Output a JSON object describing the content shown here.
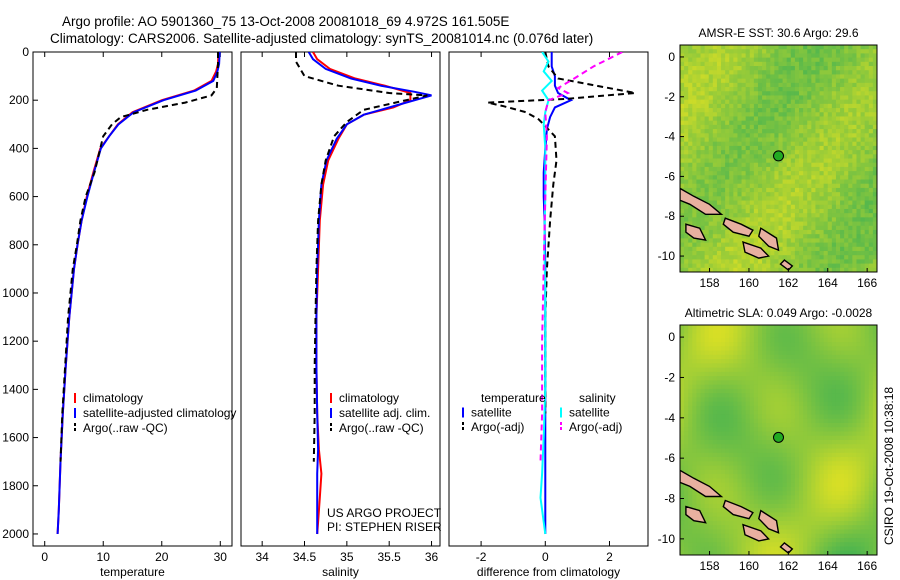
{
  "figure": {
    "title_line1": "Argo profile: AO 5901360_75 13-Oct-2008 20081018_69 4.972S 161.505E",
    "title_line2": "Climatology: CARS2006. Satellite-adjusted climatology: synTS_20081014.nc (0.076d later)",
    "footer_credit": "CSIRO 19-Oct-2008 10:38:18"
  },
  "colors": {
    "climatology": "#ff0000",
    "satellite": "#0000ff",
    "argo": "#000000",
    "diff_temp_argo": "#000000",
    "diff_sal_satellite": "#00ffff",
    "diff_sal_argo": "#ff00ff",
    "marker": "#22aa22"
  },
  "chart_data": [
    {
      "id": "temperature-panel",
      "type": "line",
      "xlabel": "temperature",
      "ylabel": "",
      "xlim": [
        -2,
        32
      ],
      "ylim": [
        2050,
        0
      ],
      "xticks": [
        0,
        10,
        20,
        30
      ],
      "yticks": [
        0,
        200,
        400,
        600,
        800,
        1000,
        1200,
        1400,
        1600,
        1800,
        2000
      ],
      "legend": {
        "position": "lower-left",
        "entries": [
          "climatology",
          "satellite-adjusted climatology",
          "Argo(..raw -QC)"
        ]
      },
      "series": [
        {
          "name": "climatology",
          "color_key": "climatology",
          "dash": "",
          "x": [
            29.7,
            29.6,
            29.3,
            28.5,
            25.5,
            20.0,
            15.0,
            12.5,
            11.0,
            9.5,
            8.3,
            7.2,
            6.3,
            5.6,
            5.0,
            4.2,
            3.6,
            3.1,
            2.7,
            2.4,
            2.2
          ],
          "y": [
            0,
            50,
            80,
            120,
            160,
            200,
            250,
            300,
            350,
            400,
            500,
            600,
            700,
            800,
            900,
            1100,
            1300,
            1500,
            1700,
            1900,
            2000
          ]
        },
        {
          "name": "satellite-adjusted climatology",
          "color_key": "satellite",
          "dash": "",
          "x": [
            29.9,
            29.8,
            29.5,
            28.8,
            25.8,
            20.3,
            15.2,
            12.6,
            11.0,
            9.6,
            8.4,
            7.3,
            6.3,
            5.6,
            5.0,
            4.2,
            3.6,
            3.1,
            2.7,
            2.4,
            2.2
          ],
          "y": [
            0,
            50,
            80,
            120,
            160,
            200,
            250,
            300,
            350,
            400,
            500,
            600,
            700,
            800,
            900,
            1100,
            1300,
            1500,
            1700,
            1900,
            2000
          ]
        },
        {
          "name": "Argo(..raw -QC)",
          "color_key": "argo",
          "dash": "6,4",
          "x": [
            29.6,
            29.6,
            29.5,
            29.4,
            28.5,
            24.0,
            17.5,
            13.0,
            11.5,
            10.0,
            8.5,
            7.0,
            6.1,
            5.5,
            4.8,
            4.0,
            3.5,
            3.0,
            2.7
          ],
          "y": [
            0,
            50,
            100,
            150,
            180,
            210,
            240,
            270,
            300,
            350,
            500,
            600,
            700,
            800,
            900,
            1100,
            1300,
            1500,
            1700
          ]
        }
      ]
    },
    {
      "id": "salinity-panel",
      "type": "line",
      "xlabel": "salinity",
      "ylabel": "",
      "xlim": [
        33.75,
        36.1
      ],
      "ylim": [
        2050,
        0
      ],
      "xticks": [
        34,
        34.5,
        35,
        35.5,
        36
      ],
      "yticks": [],
      "legend": {
        "position": "lower-left",
        "entries": [
          "climatology",
          "satellite adj. clim.",
          "Argo(..raw -QC)"
        ]
      },
      "annotations": [
        "US ARGO PROJECT",
        "PI: STEPHEN RISER"
      ],
      "series": [
        {
          "name": "climatology",
          "color_key": "climatology",
          "dash": "",
          "x": [
            34.6,
            34.65,
            34.8,
            35.1,
            35.45,
            35.75,
            35.75,
            35.55,
            35.2,
            35.0,
            34.9,
            34.78,
            34.72,
            34.68,
            34.66,
            34.64,
            34.64,
            34.65,
            34.67,
            34.7,
            34.68,
            34.66,
            34.65
          ],
          "y": [
            0,
            30,
            70,
            110,
            140,
            170,
            200,
            230,
            260,
            300,
            360,
            450,
            550,
            700,
            900,
            1100,
            1300,
            1500,
            1650,
            1750,
            1850,
            1950,
            2000
          ]
        },
        {
          "name": "satellite adj. clim.",
          "color_key": "satellite",
          "dash": "",
          "x": [
            34.55,
            34.6,
            34.75,
            35.05,
            35.4,
            35.8,
            36.0,
            35.6,
            35.2,
            35.0,
            34.88,
            34.76,
            34.7,
            34.67,
            34.65,
            34.64,
            34.64,
            34.65,
            34.66,
            34.65,
            34.65,
            34.65,
            34.65
          ],
          "y": [
            0,
            30,
            70,
            110,
            140,
            165,
            180,
            220,
            260,
            300,
            360,
            450,
            550,
            700,
            900,
            1100,
            1300,
            1500,
            1650,
            1750,
            1850,
            1950,
            2000
          ]
        },
        {
          "name": "Argo(..raw -QC)",
          "color_key": "argo",
          "dash": "6,4",
          "x": [
            34.4,
            34.4,
            34.5,
            34.9,
            35.5,
            35.95,
            35.7,
            35.2,
            35.0,
            34.85,
            34.75,
            34.7,
            34.66,
            34.64,
            34.63,
            34.62,
            34.62,
            34.61
          ],
          "y": [
            0,
            40,
            100,
            140,
            170,
            180,
            200,
            240,
            290,
            350,
            450,
            550,
            700,
            900,
            1100,
            1300,
            1500,
            1700
          ]
        }
      ]
    },
    {
      "id": "difference-panel",
      "type": "line",
      "xlabel": "difference from climatology",
      "ylabel": "",
      "xlim": [
        -3,
        3.2
      ],
      "ylim": [
        2050,
        0
      ],
      "xticks": [
        -2,
        0,
        2
      ],
      "yticks": [],
      "legend": {
        "position": "lower-left",
        "entries": [
          "temperature",
          "satellite",
          "Argo(-adj)",
          "salinity",
          "satellite",
          "Argo(-adj)"
        ]
      },
      "series": [
        {
          "name": "satellite",
          "group": "temperature",
          "color_key": "satellite",
          "dash": "",
          "x": [
            0.2,
            0.2,
            0.3,
            0.3,
            0.4,
            0.8,
            0.3,
            0.15,
            0.05,
            0.0,
            -0.05,
            -0.05,
            -0.02,
            0.0,
            0.0,
            0.0,
            0.0,
            0.0
          ],
          "y": [
            0,
            60,
            100,
            140,
            170,
            200,
            230,
            270,
            320,
            400,
            500,
            600,
            700,
            900,
            1200,
            1500,
            1800,
            2000
          ]
        },
        {
          "name": "Argo(-adj)",
          "group": "temperature",
          "color_key": "diff_temp_argo",
          "dash": "6,4",
          "x": [
            0.0,
            0.1,
            0.4,
            2.8,
            0.6,
            -1.8,
            -1.3,
            -0.6,
            -0.2,
            0.3,
            0.35,
            0.25,
            0.15,
            0.05,
            0.0,
            0.0,
            0.0
          ],
          "y": [
            0,
            60,
            110,
            170,
            195,
            210,
            225,
            250,
            280,
            350,
            450,
            550,
            700,
            900,
            1100,
            1300,
            1500
          ]
        },
        {
          "name": "satellite",
          "group": "salinity",
          "color_key": "diff_sal_satellite",
          "dash": "",
          "x": [
            -0.1,
            0.1,
            -0.05,
            0.2,
            -0.1,
            0.1,
            0.0,
            -0.05,
            0.0,
            0.0,
            -0.03,
            0.0,
            0.0,
            0.0,
            -0.05,
            -0.1,
            -0.15,
            -0.05,
            0.0
          ],
          "y": [
            0,
            40,
            80,
            120,
            160,
            200,
            250,
            300,
            400,
            600,
            800,
            1000,
            1200,
            1400,
            1600,
            1750,
            1850,
            1950,
            2000
          ]
        },
        {
          "name": "Argo(-adj)",
          "group": "salinity",
          "color_key": "diff_sal_argo",
          "dash": "6,4",
          "x": [
            2.4,
            1.5,
            0.9,
            0.4,
            0.7,
            0.1,
            0.0,
            0.05,
            0.0,
            -0.05,
            -0.1,
            -0.1,
            -0.15
          ],
          "y": [
            0,
            60,
            110,
            150,
            170,
            200,
            250,
            350,
            600,
            900,
            1200,
            1500,
            1700
          ]
        }
      ]
    },
    {
      "id": "sst-map",
      "type": "heatmap",
      "title": "AMSR-E SST: 30.6 Argo: 29.6",
      "xlim": [
        156.5,
        166.5
      ],
      "ylim": [
        -10.8,
        0.6
      ],
      "xticks": [
        158,
        160,
        162,
        164,
        166
      ],
      "yticks": [
        0,
        -2,
        -4,
        -6,
        -8,
        -10
      ],
      "marker": {
        "x": 161.5,
        "y": -4.97
      }
    },
    {
      "id": "sla-map",
      "type": "heatmap",
      "title": "Altimetric SLA: 0.049 Argo: -0.0028",
      "xlim": [
        156.5,
        166.5
      ],
      "ylim": [
        -10.8,
        0.6
      ],
      "xticks": [
        158,
        160,
        162,
        164,
        166
      ],
      "yticks": [
        0,
        -2,
        -4,
        -6,
        -8,
        -10
      ],
      "marker": {
        "x": 161.5,
        "y": -4.97
      }
    }
  ]
}
